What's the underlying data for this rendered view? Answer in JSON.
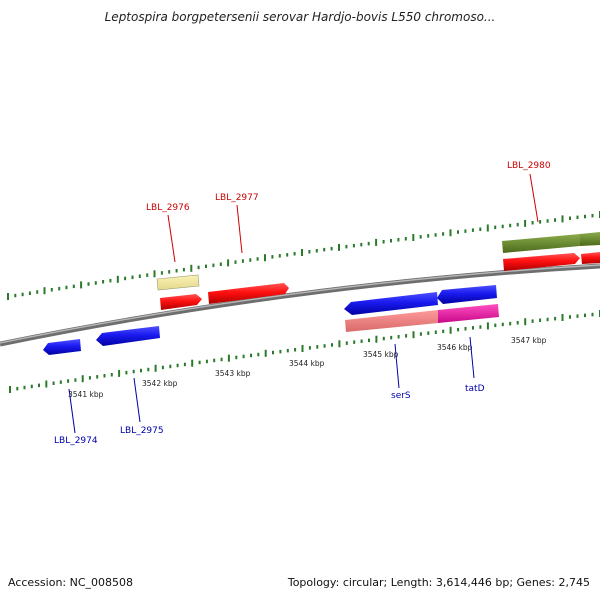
{
  "title": "Leptospira borgpetersenii serovar Hardjo-bovis L550 chromoso...",
  "footer": {
    "accession": "Accession: NC_008508",
    "summary": "Topology: circular; Length: 3,614,446 bp; Genes: 2,745"
  },
  "colors": {
    "forward_label": "#cc0000",
    "reverse_label": "#0000aa",
    "tick": "#2a7a2a",
    "backbone": "#808080"
  },
  "scale": {
    "tick_labels": [
      "3541 kbp",
      "3542 kbp",
      "3543 kbp",
      "3544 kbp",
      "3545 kbp",
      "3546 kbp",
      "3547 kbp"
    ]
  },
  "genes": {
    "forward_labels": [
      "LBL_2976",
      "LBL_2977",
      "LBL_2980"
    ],
    "reverse_labels": [
      "LBL_2974",
      "LBL_2975",
      "serS",
      "tatD"
    ]
  }
}
